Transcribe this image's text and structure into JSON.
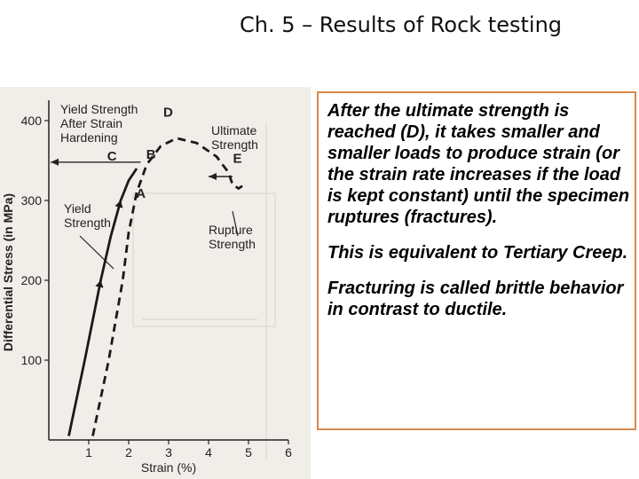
{
  "slide": {
    "title": "Ch. 5 – Results of Rock testing",
    "paragraphs": [
      "After the ultimate strength is reached (D), it takes smaller and smaller loads to produce strain (or the strain rate increases if the load is kept constant) until the specimen ruptures (fractures).",
      "This is equivalent to Tertiary Creep.",
      "Fracturing is called brittle behavior in contrast to ductile."
    ]
  },
  "chart_data": {
    "type": "line",
    "xlabel": "Strain (%)",
    "ylabel": "Differential Stress (in MPa)",
    "xlim": [
      0,
      6
    ],
    "ylim": [
      0,
      420
    ],
    "xticks": [
      "1",
      "2",
      "3",
      "4",
      "5",
      "6"
    ],
    "yticks": [
      "100",
      "200",
      "300",
      "400"
    ],
    "series": [
      {
        "style": "solid",
        "color": "#1a1a1a",
        "points": [
          [
            0.5,
            5
          ],
          [
            0.9,
            100
          ],
          [
            1.3,
            200
          ],
          [
            1.55,
            255
          ],
          [
            1.8,
            300
          ],
          [
            2.0,
            325
          ],
          [
            2.2,
            340
          ]
        ]
      },
      {
        "style": "dashed",
        "color": "#1a1a1a",
        "points": [
          [
            1.1,
            5
          ],
          [
            1.5,
            100
          ],
          [
            1.85,
            200
          ],
          [
            2.0,
            260
          ],
          [
            2.2,
            310
          ],
          [
            2.45,
            345
          ],
          [
            2.8,
            368
          ],
          [
            3.2,
            378
          ],
          [
            3.7,
            372
          ],
          [
            4.2,
            355
          ],
          [
            4.5,
            335
          ],
          [
            4.6,
            320
          ],
          [
            4.75,
            315
          ],
          [
            4.9,
            320
          ]
        ]
      }
    ],
    "points": [
      {
        "label": "A",
        "x": 2.05,
        "y": 310
      },
      {
        "label": "B",
        "x": 2.35,
        "y": 348
      },
      {
        "label": "C",
        "x": 1.95,
        "y": 348
      },
      {
        "label": "D",
        "x": 3.0,
        "y": 385
      },
      {
        "label": "E",
        "x": 4.7,
        "y": 325
      }
    ],
    "annotations": [
      {
        "id": "yield-strength-after-hardening",
        "lines": [
          "Yield Strength",
          "After Strain",
          "Hardening"
        ]
      },
      {
        "id": "ultimate-strength",
        "lines": [
          "Ultimate",
          "Strength"
        ]
      },
      {
        "id": "yield-strength",
        "lines": [
          "Yield",
          "Strength"
        ]
      },
      {
        "id": "rupture-strength",
        "lines": [
          "Rupture",
          "Strength"
        ]
      }
    ]
  }
}
